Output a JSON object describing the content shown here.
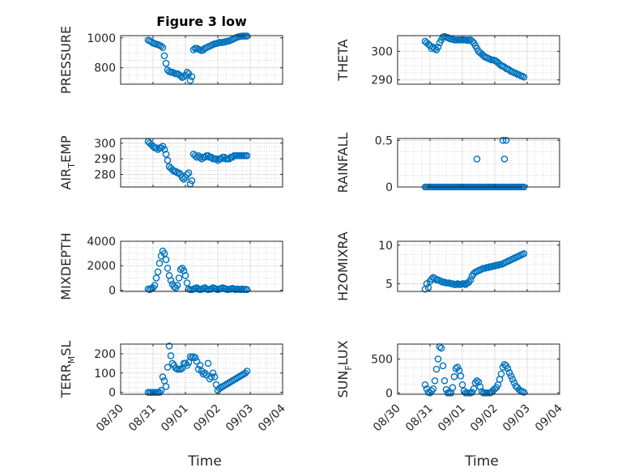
{
  "figure": {
    "x_tick_labels": [
      "08/30",
      "08/31",
      "09/01",
      "09/02",
      "09/03",
      "09/04"
    ],
    "x_axis_label": "Time",
    "marker_color": "#0072BD",
    "grid_color": "#bdbdbd",
    "axis_color": "#262626"
  },
  "chart_data": [
    {
      "type": "scatter",
      "title": "Figure 3 low",
      "ylabel": "PRESSURE",
      "ylim": [
        690,
        1015
      ],
      "yticks": [
        800,
        1000
      ],
      "ytick_labels": [
        "800",
        "1000"
      ],
      "xlim": [
        0,
        5
      ],
      "grid": true,
      "minor_grid": true,
      "x": [
        0.85,
        0.9,
        0.95,
        1.0,
        1.05,
        1.1,
        1.15,
        1.2,
        1.25,
        1.3,
        1.35,
        1.4,
        1.45,
        1.5,
        1.55,
        1.6,
        1.65,
        1.7,
        1.75,
        1.8,
        1.85,
        1.9,
        1.95,
        2.0,
        2.05,
        2.1,
        2.15,
        2.2,
        2.25,
        2.3,
        2.35,
        2.4,
        2.45,
        2.5,
        2.55,
        2.6,
        2.65,
        2.7,
        2.75,
        2.8,
        2.85,
        2.9,
        2.95,
        3.0,
        3.05,
        3.1,
        3.15,
        3.2,
        3.25,
        3.3,
        3.35,
        3.4,
        3.45,
        3.5,
        3.55,
        3.6,
        3.65,
        3.7,
        3.75,
        3.8,
        3.85,
        3.9
      ],
      "y": [
        985,
        980,
        975,
        965,
        962,
        958,
        955,
        950,
        945,
        935,
        880,
        830,
        785,
        775,
        770,
        770,
        765,
        760,
        760,
        755,
        745,
        735,
        740,
        750,
        770,
        760,
        715,
        740,
        920,
        930,
        930,
        925,
        920,
        915,
        920,
        930,
        935,
        940,
        945,
        950,
        955,
        960,
        962,
        965,
        970,
        968,
        970,
        972,
        975,
        978,
        980,
        985,
        990,
        995,
        1000,
        1005,
        1008,
        1010,
        1012,
        1012,
        1012,
        1012
      ]
    },
    {
      "type": "scatter",
      "title": "",
      "ylabel": "THETA",
      "ylim": [
        288.5,
        305.5
      ],
      "yticks": [
        290,
        300
      ],
      "ytick_labels": [
        "290",
        "300"
      ],
      "xlim": [
        0,
        5
      ],
      "grid": true,
      "minor_grid": true,
      "x": [
        0.85,
        0.9,
        0.95,
        1.0,
        1.05,
        1.1,
        1.15,
        1.2,
        1.25,
        1.3,
        1.35,
        1.4,
        1.45,
        1.5,
        1.55,
        1.6,
        1.65,
        1.7,
        1.75,
        1.8,
        1.85,
        1.9,
        1.95,
        2.0,
        2.05,
        2.1,
        2.15,
        2.2,
        2.25,
        2.3,
        2.35,
        2.4,
        2.45,
        2.5,
        2.55,
        2.6,
        2.65,
        2.7,
        2.75,
        2.8,
        2.85,
        2.9,
        2.95,
        3.0,
        3.05,
        3.1,
        3.15,
        3.2,
        3.25,
        3.3,
        3.35,
        3.4,
        3.45,
        3.5,
        3.55,
        3.6,
        3.65,
        3.7,
        3.75,
        3.8,
        3.85,
        3.9
      ],
      "y": [
        303.5,
        303.0,
        302.5,
        302.0,
        301.0,
        301.5,
        301.0,
        300.5,
        301.5,
        303.0,
        304.0,
        305.0,
        305.2,
        305.0,
        304.8,
        304.5,
        304.3,
        304.2,
        304.0,
        304.0,
        304.0,
        304.0,
        304.0,
        304.0,
        304.0,
        304.0,
        303.8,
        304.0,
        304.0,
        303.5,
        303.0,
        302.0,
        301.0,
        300.0,
        299.5,
        299.0,
        298.5,
        298.0,
        297.8,
        297.5,
        297.3,
        297.0,
        297.0,
        296.8,
        296.5,
        296.0,
        295.5,
        295.0,
        294.8,
        294.5,
        294.0,
        293.8,
        293.5,
        293.0,
        292.8,
        292.5,
        292.3,
        292.0,
        291.8,
        291.5,
        291.3,
        291.0
      ]
    },
    {
      "type": "scatter",
      "title": "",
      "ylabel": "AIR_TEMP",
      "ylim": [
        272,
        303
      ],
      "yticks": [
        280,
        290,
        300
      ],
      "ytick_labels": [
        "280",
        "290",
        "300"
      ],
      "xlim": [
        0,
        5
      ],
      "grid": true,
      "minor_grid": true,
      "x": [
        0.85,
        0.9,
        0.95,
        1.0,
        1.05,
        1.1,
        1.15,
        1.2,
        1.25,
        1.3,
        1.35,
        1.4,
        1.45,
        1.5,
        1.55,
        1.6,
        1.65,
        1.7,
        1.75,
        1.8,
        1.85,
        1.9,
        1.95,
        2.0,
        2.05,
        2.1,
        2.15,
        2.2,
        2.25,
        2.3,
        2.35,
        2.4,
        2.45,
        2.5,
        2.55,
        2.6,
        2.65,
        2.7,
        2.75,
        2.8,
        2.85,
        2.9,
        2.95,
        3.0,
        3.05,
        3.1,
        3.15,
        3.2,
        3.25,
        3.3,
        3.35,
        3.4,
        3.45,
        3.5,
        3.55,
        3.6,
        3.65,
        3.7,
        3.75,
        3.8,
        3.85,
        3.9
      ],
      "y": [
        301,
        300,
        299,
        298,
        297,
        297,
        296,
        297,
        297,
        298,
        296,
        293,
        289,
        285,
        284,
        283,
        282,
        282,
        281,
        281,
        280,
        278,
        277,
        278,
        280,
        281,
        274,
        276,
        293,
        292,
        291,
        292,
        291,
        290,
        291,
        291,
        292,
        292,
        291,
        291,
        290,
        290,
        290,
        289,
        290,
        290,
        291,
        291,
        290,
        290,
        290,
        291,
        291,
        292,
        292,
        292,
        292,
        292,
        292,
        292,
        292,
        292
      ]
    },
    {
      "type": "scatter",
      "title": "",
      "ylabel": "RAINFALL",
      "ylim": [
        0,
        0.52
      ],
      "yticks": [
        0,
        0.5
      ],
      "ytick_labels": [
        "0",
        "0.5"
      ],
      "xlim": [
        0,
        5
      ],
      "grid": true,
      "minor_grid": true,
      "x": [
        0.85,
        0.9,
        0.95,
        1.0,
        1.05,
        1.1,
        1.15,
        1.2,
        1.25,
        1.3,
        1.35,
        1.4,
        1.45,
        1.5,
        1.55,
        1.6,
        1.65,
        1.7,
        1.75,
        1.8,
        1.85,
        1.9,
        1.95,
        2.0,
        2.05,
        2.1,
        2.15,
        2.2,
        2.25,
        2.3,
        2.35,
        2.4,
        2.45,
        2.5,
        2.55,
        2.6,
        2.65,
        2.7,
        2.75,
        2.8,
        2.85,
        2.9,
        2.95,
        3.0,
        3.05,
        3.1,
        3.15,
        3.2,
        3.25,
        3.3,
        3.35,
        3.4,
        3.45,
        3.5,
        3.55,
        3.6,
        3.65,
        3.7,
        3.75,
        3.8,
        3.85,
        3.9,
        2.45,
        3.25,
        3.3,
        3.35
      ],
      "y": [
        0,
        0,
        0,
        0,
        0,
        0,
        0,
        0,
        0,
        0,
        0,
        0,
        0,
        0,
        0,
        0,
        0,
        0,
        0,
        0,
        0,
        0,
        0,
        0,
        0,
        0,
        0,
        0,
        0,
        0,
        0,
        0,
        0,
        0,
        0,
        0,
        0,
        0,
        0,
        0,
        0,
        0,
        0,
        0,
        0,
        0,
        0,
        0,
        0,
        0,
        0,
        0,
        0,
        0,
        0,
        0,
        0,
        0,
        0,
        0,
        0,
        0,
        0.3,
        0.5,
        0.3,
        0.5
      ]
    },
    {
      "type": "scatter",
      "title": "",
      "ylabel": "MIXDEPTH",
      "ylim": [
        -100,
        4000
      ],
      "yticks": [
        0,
        2000,
        4000
      ],
      "ytick_labels": [
        "0",
        "2000",
        "4000"
      ],
      "xlim": [
        0,
        5
      ],
      "grid": true,
      "minor_grid": true,
      "x": [
        0.85,
        0.9,
        0.95,
        1.0,
        1.05,
        1.1,
        1.15,
        1.2,
        1.25,
        1.3,
        1.35,
        1.4,
        1.45,
        1.5,
        1.55,
        1.6,
        1.65,
        1.7,
        1.75,
        1.8,
        1.85,
        1.9,
        1.95,
        2.0,
        2.05,
        2.1,
        2.15,
        2.2,
        2.25,
        2.3,
        2.35,
        2.4,
        2.45,
        2.5,
        2.55,
        2.6,
        2.65,
        2.7,
        2.75,
        2.8,
        2.85,
        2.9,
        2.95,
        3.0,
        3.05,
        3.1,
        3.15,
        3.2,
        3.25,
        3.3,
        3.35,
        3.4,
        3.45,
        3.5,
        3.55,
        3.6,
        3.65,
        3.7,
        3.75,
        3.8,
        3.85,
        3.9
      ],
      "y": [
        100,
        50,
        150,
        200,
        400,
        1000,
        1500,
        2200,
        2800,
        3200,
        3000,
        2500,
        1800,
        1200,
        800,
        500,
        300,
        200,
        400,
        1000,
        1700,
        1800,
        1600,
        1200,
        600,
        100,
        50,
        50,
        100,
        150,
        200,
        100,
        50,
        80,
        150,
        200,
        100,
        50,
        80,
        100,
        200,
        150,
        100,
        50,
        100,
        150,
        200,
        150,
        100,
        50,
        80,
        100,
        150,
        100,
        50,
        100,
        80,
        50,
        100,
        50,
        80,
        50
      ]
    },
    {
      "type": "scatter",
      "title": "",
      "ylabel": "H2OMIXRA",
      "ylim": [
        4,
        10.5
      ],
      "yticks": [
        5,
        10
      ],
      "ytick_labels": [
        "5",
        "10"
      ],
      "xlim": [
        0,
        5
      ],
      "grid": true,
      "minor_grid": true,
      "x": [
        0.85,
        0.9,
        0.95,
        1.0,
        1.05,
        1.1,
        1.15,
        1.2,
        1.25,
        1.3,
        1.35,
        1.4,
        1.45,
        1.5,
        1.55,
        1.6,
        1.65,
        1.7,
        1.75,
        1.8,
        1.85,
        1.9,
        1.95,
        2.0,
        2.05,
        2.1,
        2.15,
        2.2,
        2.25,
        2.3,
        2.35,
        2.4,
        2.45,
        2.5,
        2.55,
        2.6,
        2.65,
        2.7,
        2.75,
        2.8,
        2.85,
        2.9,
        2.95,
        3.0,
        3.05,
        3.1,
        3.15,
        3.2,
        3.25,
        3.3,
        3.35,
        3.4,
        3.45,
        3.5,
        3.55,
        3.6,
        3.65,
        3.7,
        3.75,
        3.8,
        3.85,
        3.9
      ],
      "y": [
        4.3,
        5.0,
        4.5,
        5.3,
        5.6,
        5.8,
        5.7,
        5.5,
        5.5,
        5.4,
        5.3,
        5.2,
        5.2,
        5.1,
        5.1,
        5.1,
        5.0,
        5.0,
        4.9,
        4.9,
        5.0,
        4.9,
        4.9,
        5.0,
        5.0,
        4.9,
        5.1,
        5.2,
        5.5,
        6.0,
        6.3,
        6.5,
        6.6,
        6.7,
        6.8,
        6.9,
        7.0,
        7.0,
        7.1,
        7.1,
        7.2,
        7.2,
        7.3,
        7.3,
        7.4,
        7.4,
        7.5,
        7.5,
        7.6,
        7.7,
        7.8,
        7.9,
        8.0,
        8.1,
        8.2,
        8.3,
        8.4,
        8.5,
        8.6,
        8.7,
        8.8,
        8.9
      ]
    },
    {
      "type": "scatter",
      "title": "",
      "ylabel": "TERR_MSL",
      "ylim": [
        -10,
        250
      ],
      "yticks": [
        0,
        100,
        200
      ],
      "ytick_labels": [
        "0",
        "100",
        "200"
      ],
      "xlim": [
        0,
        5
      ],
      "grid": true,
      "minor_grid": true,
      "x": [
        0.85,
        0.9,
        0.95,
        1.0,
        1.05,
        1.1,
        1.15,
        1.2,
        1.25,
        1.3,
        1.35,
        1.4,
        1.45,
        1.5,
        1.55,
        1.6,
        1.65,
        1.7,
        1.75,
        1.8,
        1.85,
        1.9,
        1.95,
        2.0,
        2.05,
        2.1,
        2.15,
        2.2,
        2.25,
        2.3,
        2.35,
        2.4,
        2.45,
        2.5,
        2.55,
        2.6,
        2.65,
        2.7,
        2.75,
        2.8,
        2.85,
        2.9,
        2.95,
        3.0,
        3.05,
        3.1,
        3.15,
        3.2,
        3.25,
        3.3,
        3.35,
        3.4,
        3.45,
        3.5,
        3.55,
        3.6,
        3.65,
        3.7,
        3.75,
        3.8,
        3.85,
        3.9
      ],
      "y": [
        0,
        0,
        0,
        0,
        0,
        0,
        0,
        0,
        10,
        80,
        60,
        30,
        130,
        240,
        190,
        150,
        140,
        125,
        120,
        120,
        120,
        125,
        150,
        150,
        140,
        155,
        185,
        180,
        185,
        180,
        160,
        120,
        140,
        110,
        95,
        100,
        90,
        150,
        70,
        80,
        100,
        80,
        40,
        10,
        20,
        25,
        30,
        35,
        40,
        45,
        50,
        55,
        60,
        65,
        70,
        75,
        80,
        85,
        90,
        95,
        100,
        110
      ]
    },
    {
      "type": "scatter",
      "title": "",
      "ylabel": "SUN_FLUX",
      "ylim": [
        -20,
        720
      ],
      "yticks": [
        0,
        500
      ],
      "ytick_labels": [
        "0",
        "500"
      ],
      "xlim": [
        0,
        5
      ],
      "grid": true,
      "minor_grid": true,
      "x": [
        0.85,
        0.9,
        0.95,
        1.0,
        1.05,
        1.1,
        1.15,
        1.2,
        1.25,
        1.3,
        1.35,
        1.4,
        1.45,
        1.5,
        1.55,
        1.6,
        1.65,
        1.7,
        1.75,
        1.8,
        1.85,
        1.9,
        1.95,
        2.0,
        2.05,
        2.1,
        2.15,
        2.2,
        2.25,
        2.3,
        2.35,
        2.4,
        2.45,
        2.5,
        2.55,
        2.6,
        2.65,
        2.7,
        2.75,
        2.8,
        2.85,
        2.9,
        2.95,
        3.0,
        3.05,
        3.1,
        3.15,
        3.2,
        3.25,
        3.3,
        3.35,
        3.4,
        3.45,
        3.5,
        3.55,
        3.6,
        3.65,
        3.7,
        3.75,
        3.8,
        3.85,
        3.9
      ],
      "y": [
        120,
        60,
        10,
        0,
        30,
        60,
        180,
        350,
        500,
        680,
        660,
        400,
        180,
        50,
        0,
        0,
        0,
        80,
        240,
        360,
        380,
        330,
        250,
        120,
        30,
        0,
        0,
        0,
        0,
        10,
        60,
        150,
        180,
        160,
        90,
        20,
        0,
        0,
        0,
        0,
        0,
        10,
        40,
        60,
        80,
        120,
        200,
        280,
        380,
        420,
        400,
        360,
        300,
        250,
        200,
        150,
        100,
        80,
        50,
        30,
        20,
        10
      ]
    }
  ]
}
